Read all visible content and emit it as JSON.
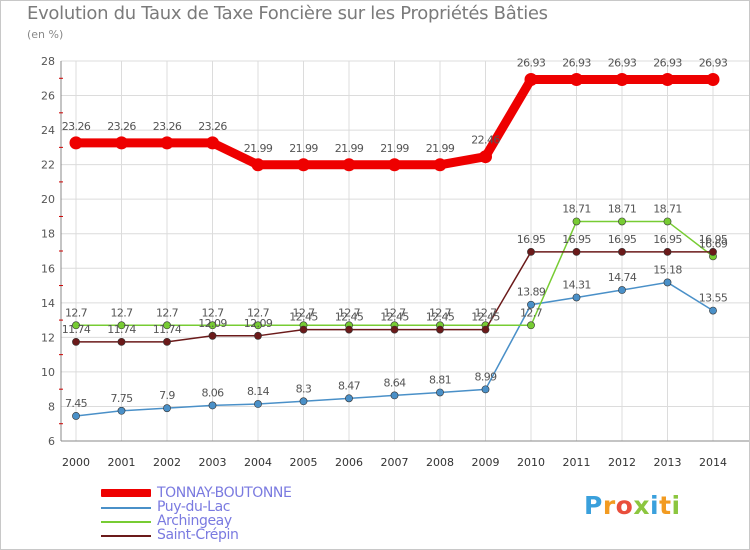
{
  "title": "Evolution du Taux de Taxe Foncière sur les Propriétés Bâties",
  "subtitle": "(en %)",
  "logo": {
    "text": "Proxiti",
    "letters": [
      {
        "ch": "P",
        "color": "#3aa0dc"
      },
      {
        "ch": "r",
        "color": "#f29b21"
      },
      {
        "ch": "o",
        "color": "#e94e3c"
      },
      {
        "ch": "x",
        "color": "#8cc63f"
      },
      {
        "ch": "i",
        "color": "#3aa0dc"
      },
      {
        "ch": "t",
        "color": "#f29b21"
      },
      {
        "ch": "i",
        "color": "#8cc63f"
      }
    ]
  },
  "chart_data": {
    "type": "line",
    "title": "Evolution du Taux de Taxe Foncière sur les Propriétés Bâties",
    "ylabel": "(en %)",
    "xlabel": "",
    "ylim": [
      6,
      28
    ],
    "yticks": [
      "6",
      "8",
      "10",
      "12",
      "14",
      "16",
      "18",
      "20",
      "22",
      "24",
      "26",
      "28"
    ],
    "categories": [
      "2000",
      "2001",
      "2002",
      "2003",
      "2004",
      "2005",
      "2006",
      "2007",
      "2008",
      "2009",
      "2010",
      "2011",
      "2012",
      "2013",
      "2014"
    ],
    "grid": true,
    "legend_position": "bottom-left",
    "series": [
      {
        "name": "TONNAY-BOUTONNE",
        "color": "#ee0000",
        "highlight": true,
        "values": [
          23.26,
          23.26,
          23.26,
          23.26,
          21.99,
          21.99,
          21.99,
          21.99,
          21.99,
          22.46,
          26.93,
          26.93,
          26.93,
          26.93,
          26.93
        ],
        "labels": [
          "23.26",
          "23.26",
          "23.26",
          "23.26",
          "21.99",
          "21.99",
          "21.99",
          "21.99",
          "21.99",
          "22.46",
          "26.93",
          "26.93",
          "26.93",
          "26.93",
          "26.93"
        ]
      },
      {
        "name": "Puy-du-Lac",
        "color": "#4a90c8",
        "highlight": false,
        "values": [
          7.45,
          7.75,
          7.9,
          8.06,
          8.14,
          8.3,
          8.47,
          8.64,
          8.81,
          8.99,
          13.89,
          14.31,
          14.74,
          15.18,
          13.55
        ],
        "labels": [
          "7.45",
          "7.75",
          "7.9",
          "8.06",
          "8.14",
          "8.3",
          "8.47",
          "8.64",
          "8.81",
          "8.99",
          "13.89",
          "14.31",
          "14.74",
          "15.18",
          "13.55"
        ]
      },
      {
        "name": "Archingeay",
        "color": "#77cc33",
        "highlight": false,
        "values": [
          12.7,
          12.7,
          12.7,
          12.7,
          12.7,
          12.7,
          12.7,
          12.7,
          12.7,
          12.7,
          12.7,
          18.71,
          18.71,
          18.71,
          16.69
        ],
        "labels": [
          "12.7",
          "12.7",
          "12.7",
          "12.7",
          "12.7",
          "12.7",
          "12.7",
          "12.7",
          "12.7",
          "12.7",
          "12.7",
          "18.71",
          "18.71",
          "18.71",
          "16.69"
        ]
      },
      {
        "name": "Saint-Crépin",
        "color": "#6b1a1a",
        "highlight": false,
        "values": [
          11.74,
          11.74,
          11.74,
          12.09,
          12.09,
          12.45,
          12.45,
          12.45,
          12.45,
          12.45,
          16.95,
          16.95,
          16.95,
          16.95,
          16.95
        ],
        "labels": [
          "11.74",
          "11.74",
          "11.74",
          "12.09",
          "12.09",
          "12.45",
          "12.45",
          "12.45",
          "12.45",
          "12.45",
          "16.95",
          "16.95",
          "16.95",
          "16.95",
          "16.95"
        ]
      }
    ]
  }
}
